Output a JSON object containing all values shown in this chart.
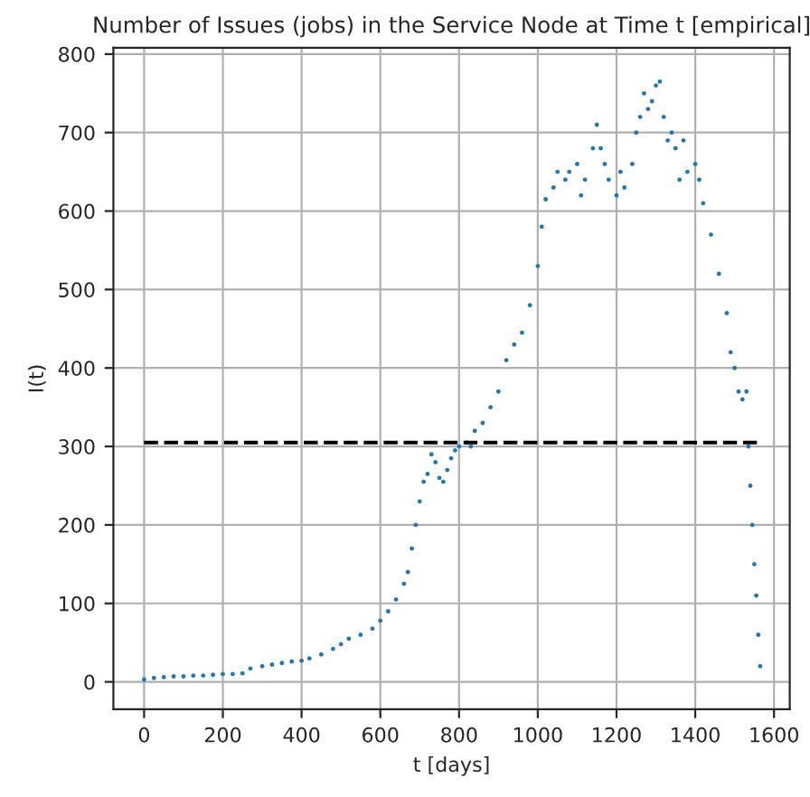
{
  "chart_data": {
    "type": "scatter",
    "title": "Number of Issues (jobs) in the Service Node at Time t [empirical]",
    "xlabel": "t [days]",
    "ylabel": "I(t)",
    "series": [
      {
        "color": "#1f77b4",
        "x": [
          0,
          25,
          50,
          75,
          100,
          125,
          150,
          175,
          200,
          225,
          250,
          270,
          300,
          325,
          350,
          375,
          400,
          420,
          450,
          480,
          500,
          520,
          550,
          580,
          600,
          620,
          640,
          660,
          670,
          680,
          690,
          700,
          710,
          720,
          730,
          740,
          750,
          760,
          770,
          780,
          790,
          800,
          820,
          830,
          840,
          860,
          880,
          900,
          920,
          940,
          960,
          980,
          1000,
          1010,
          1020,
          1040,
          1050,
          1070,
          1080,
          1100,
          1110,
          1120,
          1140,
          1150,
          1160,
          1170,
          1180,
          1200,
          1210,
          1220,
          1240,
          1250,
          1260,
          1270,
          1280,
          1290,
          1300,
          1310,
          1320,
          1330,
          1340,
          1350,
          1360,
          1370,
          1380,
          1400,
          1410,
          1420,
          1440,
          1460,
          1480,
          1490,
          1500,
          1510,
          1520,
          1530,
          1535,
          1540,
          1545,
          1550,
          1555,
          1560,
          1565
        ],
        "values": [
          3,
          5,
          6,
          7,
          7,
          8,
          8,
          9,
          10,
          10,
          11,
          17,
          20,
          22,
          24,
          26,
          27,
          30,
          35,
          42,
          48,
          55,
          60,
          68,
          78,
          90,
          105,
          125,
          140,
          170,
          200,
          230,
          255,
          265,
          290,
          280,
          260,
          255,
          270,
          285,
          295,
          300,
          305,
          300,
          320,
          330,
          350,
          370,
          410,
          430,
          445,
          480,
          530,
          580,
          615,
          630,
          650,
          640,
          650,
          660,
          620,
          640,
          680,
          710,
          680,
          660,
          640,
          620,
          650,
          630,
          660,
          700,
          720,
          750,
          730,
          740,
          760,
          765,
          720,
          690,
          700,
          680,
          640,
          690,
          650,
          660,
          640,
          610,
          570,
          520,
          470,
          420,
          400,
          370,
          360,
          370,
          300,
          250,
          200,
          150,
          110,
          60,
          20
        ]
      }
    ],
    "xlim": [
      -78,
      1640
    ],
    "ylim": [
      -35,
      808
    ],
    "xticks": [
      0,
      200,
      400,
      600,
      800,
      1000,
      1200,
      1400,
      1600
    ],
    "yticks": [
      0,
      100,
      200,
      300,
      400,
      500,
      600,
      700,
      800
    ],
    "ref_lines": [
      {
        "axis": "y",
        "value": 305,
        "color": "#000000",
        "line_style": "dashed"
      }
    ],
    "grid": true,
    "marker": "circle"
  }
}
